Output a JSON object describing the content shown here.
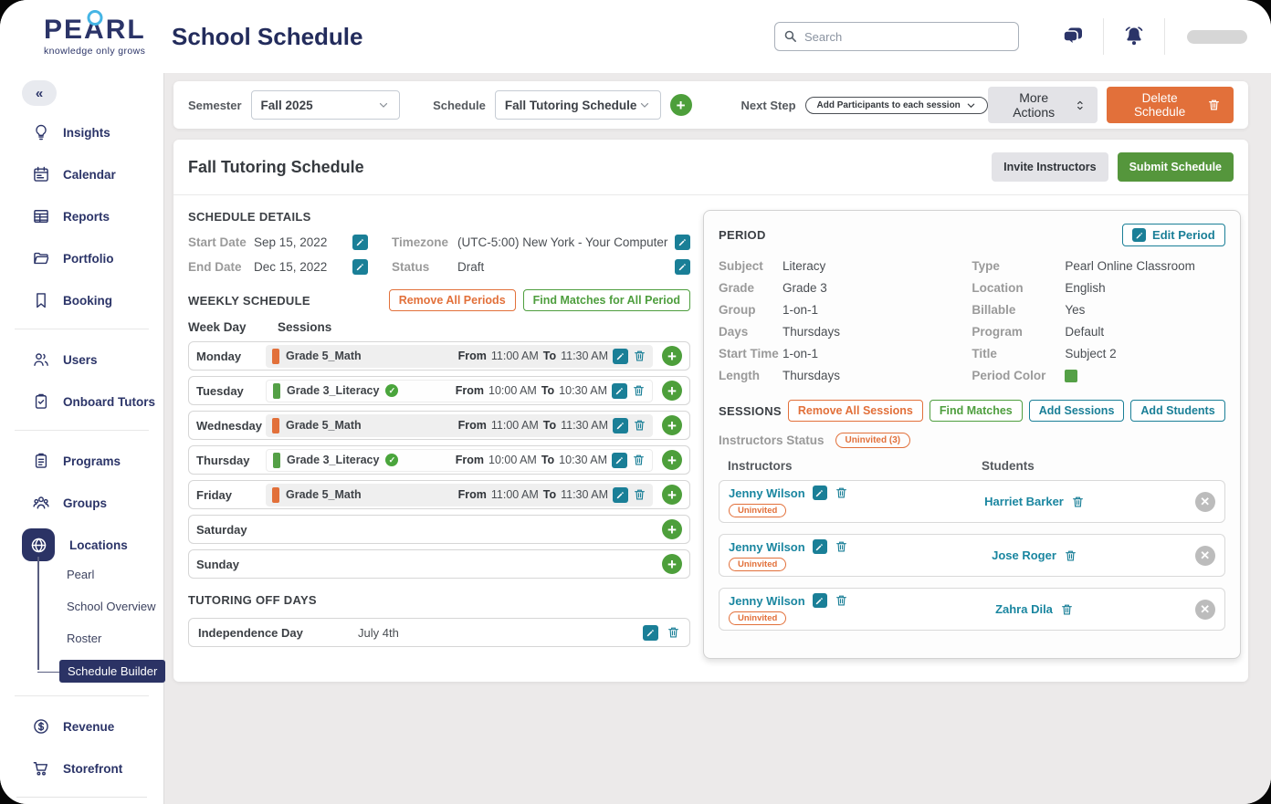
{
  "brand": {
    "name": "PEARL",
    "name_pre": "PE",
    "name_a": "A",
    "name_post": "RL",
    "tagline": "knowledge only grows"
  },
  "header": {
    "title": "School Schedule",
    "search_placeholder": "Search"
  },
  "sidebar": {
    "collapse_glyph": "«",
    "groups": [
      {
        "items": [
          {
            "label": "Insights",
            "icon": "lightbulb-icon"
          },
          {
            "label": "Calendar",
            "icon": "calendar-icon"
          },
          {
            "label": "Reports",
            "icon": "reports-icon"
          },
          {
            "label": "Portfolio",
            "icon": "folder-icon"
          },
          {
            "label": "Booking",
            "icon": "bookmark-icon"
          }
        ]
      },
      {
        "items": [
          {
            "label": "Users",
            "icon": "users-icon"
          },
          {
            "label": "Onboard Tutors",
            "icon": "clipboard-check-icon"
          }
        ]
      },
      {
        "items": [
          {
            "label": "Programs",
            "icon": "clipboard-text-icon"
          },
          {
            "label": "Groups",
            "icon": "people-group-icon"
          },
          {
            "label": "Locations",
            "icon": "globe-icon",
            "active": true
          }
        ]
      }
    ],
    "location_children": {
      "items": [
        "Pearl",
        "School Overview",
        "Roster",
        "Schedule Builder"
      ],
      "active": "Schedule Builder"
    },
    "bottom_items": [
      {
        "label": "Revenue",
        "icon": "dollar-circle-icon"
      },
      {
        "label": "Storefront",
        "icon": "cart-icon"
      }
    ]
  },
  "toolbar": {
    "semester": {
      "label": "Semester",
      "value": "Fall 2025"
    },
    "schedule_select": {
      "label": "Schedule",
      "value": "Fall Tutoring Schedule"
    },
    "next_step": {
      "label": "Next Step",
      "value": "Add Participants to each session"
    },
    "more_actions_label": "More Actions",
    "delete_label": "Delete Schedule"
  },
  "schedule": {
    "title": "Fall Tutoring Schedule",
    "invite_label": "Invite Instructors",
    "submit_label": "Submit Schedule",
    "details": {
      "heading": "SCHEDULE DETAILS",
      "start_label": "Start Date",
      "start_value": "Sep 15, 2022",
      "end_label": "End Date",
      "end_value": "Dec 15, 2022",
      "tz_label": "Timezone",
      "tz_value": "(UTC-5:00) New York - Your Computer",
      "status_label": "Status",
      "status_value": "Draft"
    },
    "weekly": {
      "heading": "WEEKLY SCHEDULE",
      "remove_all_label": "Remove All Periods",
      "find_matches_label": "Find Matches for All Period",
      "col_day": "Week Day",
      "col_sessions": "Sessions",
      "from_label": "From",
      "to_label": "To",
      "days": [
        {
          "day": "Monday",
          "session": {
            "name": "Grade 5_Math",
            "bar_color": "#e2703a",
            "from": "11:00 AM",
            "to": "11:30 AM",
            "matched": false,
            "shaded": true
          }
        },
        {
          "day": "Tuesday",
          "session": {
            "name": "Grade 3_Literacy",
            "bar_color": "#54a046",
            "from": "10:00 AM",
            "to": "10:30 AM",
            "matched": true,
            "shaded": false
          }
        },
        {
          "day": "Wednesday",
          "session": {
            "name": "Grade 5_Math",
            "bar_color": "#e2703a",
            "from": "11:00 AM",
            "to": "11:30 AM",
            "matched": false,
            "shaded": true
          }
        },
        {
          "day": "Thursday",
          "session": {
            "name": "Grade 3_Literacy",
            "bar_color": "#54a046",
            "from": "10:00 AM",
            "to": "10:30 AM",
            "matched": true,
            "shaded": false
          }
        },
        {
          "day": "Friday",
          "session": {
            "name": "Grade 5_Math",
            "bar_color": "#e2703a",
            "from": "11:00 AM",
            "to": "11:30 AM",
            "matched": false,
            "shaded": true
          }
        },
        {
          "day": "Saturday",
          "session": null
        },
        {
          "day": "Sunday",
          "session": null
        }
      ]
    },
    "off_days": {
      "heading": "TUTORING OFF DAYS",
      "items": [
        {
          "name": "Independence Day",
          "date": "July 4th"
        }
      ]
    }
  },
  "period": {
    "heading": "PERIOD",
    "edit_label": "Edit Period",
    "columns": [
      {
        "fields": [
          {
            "label": "Subject",
            "value": "Literacy"
          },
          {
            "label": "Grade",
            "value": "Grade 3"
          },
          {
            "label": "Group",
            "value": "1-on-1"
          },
          {
            "label": "Days",
            "value": "Thursdays"
          },
          {
            "label": "Start Time",
            "value": "1-on-1"
          },
          {
            "label": "Length",
            "value": "Thursdays"
          }
        ]
      },
      {
        "fields": [
          {
            "label": "Type",
            "value": "Pearl Online Classroom"
          },
          {
            "label": "Location",
            "value": "English"
          },
          {
            "label": "Billable",
            "value": "Yes"
          },
          {
            "label": "Program",
            "value": "Default"
          },
          {
            "label": "Title",
            "value": "Subject 2"
          },
          {
            "label": "Period Color",
            "value": "",
            "swatch": "#54a046"
          }
        ]
      }
    ]
  },
  "sessions": {
    "heading": "SESSIONS",
    "remove_all_label": "Remove All Sessions",
    "find_matches_label": "Find Matches",
    "add_sessions_label": "Add Sessions",
    "add_students_label": "Add Students",
    "status_label": "Instructors Status",
    "status_badge": "Uninvited (3)",
    "col_instructors": "Instructors",
    "col_students": "Students",
    "rows": [
      {
        "instructor": "Jenny Wilson",
        "instructor_status": "Uninvited",
        "student": "Harriet Barker"
      },
      {
        "instructor": "Jenny Wilson",
        "instructor_status": "Uninvited",
        "student": "Jose Roger"
      },
      {
        "instructor": "Jenny Wilson",
        "instructor_status": "Uninvited",
        "student": "Zahra Dila"
      }
    ]
  },
  "colors": {
    "navy": "#2b3468",
    "teal": "#1a7f97",
    "orange": "#e2703a",
    "green_button": "#55963c",
    "plus_green": "#4d9f3b",
    "period_color": "#54a046"
  }
}
